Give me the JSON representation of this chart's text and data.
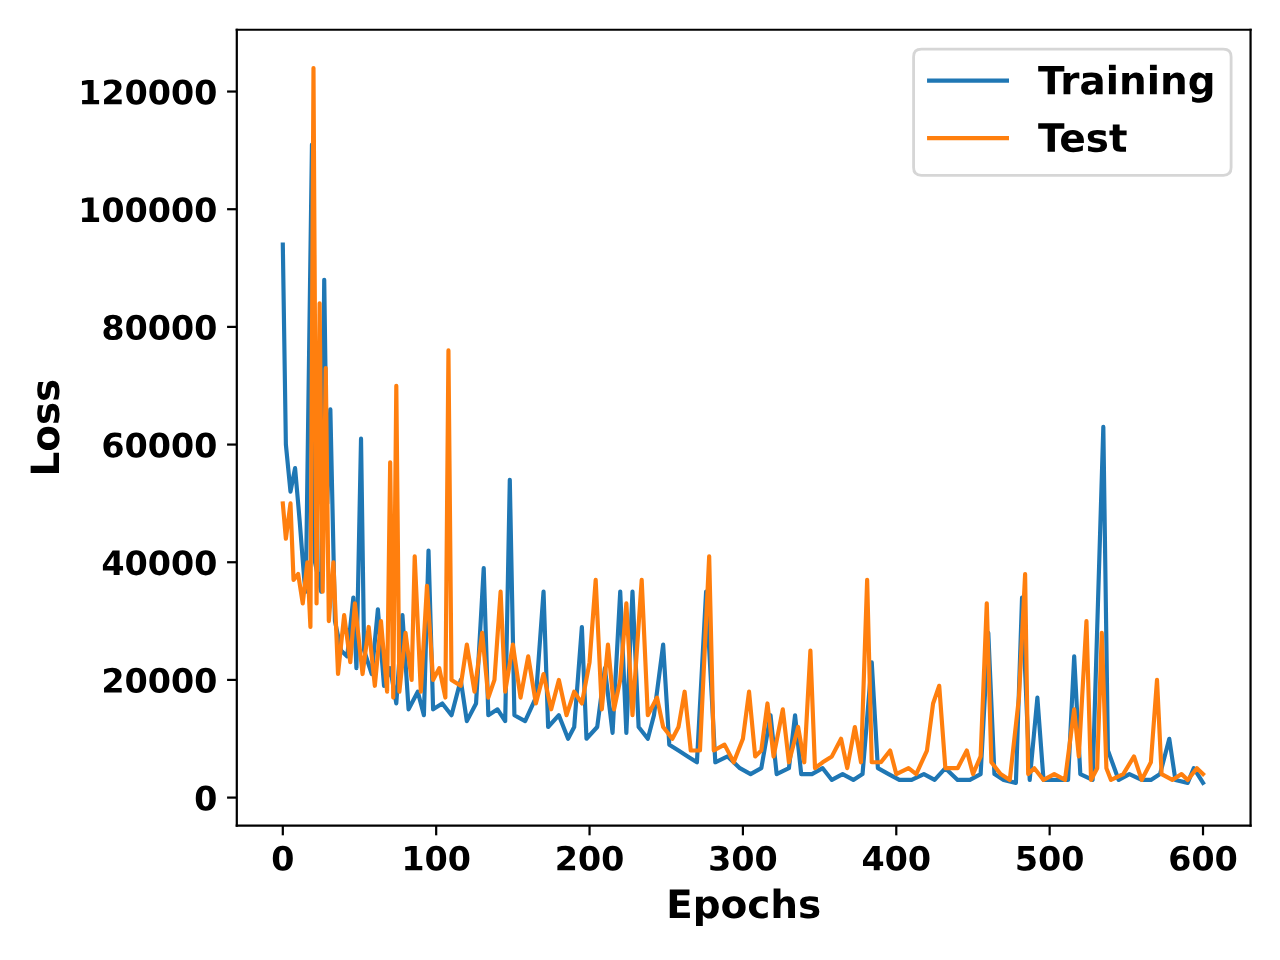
{
  "chart_data": {
    "type": "line",
    "xlabel": "Epochs",
    "ylabel": "Loss",
    "xlim": [
      -30,
      631
    ],
    "ylim": [
      -4760,
      130500
    ],
    "xticks": [
      0,
      100,
      200,
      300,
      400,
      500,
      600
    ],
    "yticks": [
      0,
      20000,
      40000,
      60000,
      80000,
      100000,
      120000
    ],
    "legend": "top right",
    "grid": false,
    "series": [
      {
        "name": "Training",
        "color": "#1f77b4",
        "x": [
          0,
          2,
          5,
          8,
          11,
          14,
          15,
          19,
          21,
          25,
          27,
          29,
          31,
          34,
          38,
          42,
          46,
          48,
          51,
          53,
          58,
          62,
          66,
          70,
          74,
          78,
          82,
          88,
          92,
          95,
          98,
          104,
          110,
          116,
          120,
          126,
          131,
          134,
          140,
          145,
          148,
          151,
          158,
          165,
          170,
          173,
          180,
          186,
          190,
          195,
          198,
          205,
          210,
          215,
          220,
          224,
          228,
          232,
          238,
          242,
          248,
          252,
          258,
          264,
          270,
          276,
          282,
          290,
          298,
          305,
          312,
          318,
          322,
          330,
          334,
          338,
          345,
          352,
          358,
          365,
          372,
          378,
          384,
          388,
          395,
          402,
          410,
          418,
          425,
          432,
          440,
          448,
          455,
          460,
          464,
          470,
          478,
          482,
          487,
          492,
          496,
          505,
          512,
          516,
          520,
          528,
          535,
          538,
          545,
          552,
          560,
          566,
          572,
          578,
          582,
          590,
          594,
          600
        ],
        "values": [
          94000,
          60000,
          52000,
          56000,
          47000,
          37000,
          35000,
          111000,
          40000,
          35000,
          88000,
          50000,
          66000,
          30000,
          25000,
          24000,
          34000,
          22000,
          61000,
          25000,
          21000,
          32000,
          19000,
          22000,
          16000,
          31000,
          15000,
          18000,
          14000,
          42000,
          15000,
          16000,
          14000,
          20000,
          13000,
          16000,
          39000,
          14000,
          15000,
          13000,
          54000,
          14000,
          13000,
          17000,
          35000,
          12000,
          14000,
          10000,
          12000,
          29000,
          10000,
          12000,
          22000,
          11000,
          35000,
          11000,
          35000,
          12000,
          10000,
          14000,
          26000,
          9000,
          8000,
          7000,
          6000,
          35000,
          6000,
          7000,
          5000,
          4000,
          5000,
          14000,
          4000,
          5000,
          14000,
          4000,
          4000,
          5000,
          3000,
          4000,
          3000,
          4000,
          23000,
          5000,
          4000,
          3000,
          3000,
          4000,
          3000,
          5000,
          3000,
          3000,
          4000,
          28000,
          4000,
          3000,
          2500,
          34000,
          3000,
          17000,
          3000,
          3000,
          3000,
          24000,
          4000,
          3000,
          63000,
          8000,
          3000,
          4000,
          3000,
          3000,
          4000,
          10000,
          3000,
          2500,
          5000,
          2500
        ]
      },
      {
        "name": "Test",
        "color": "#ff7f0e",
        "x": [
          0,
          2,
          5,
          7,
          10,
          13,
          16,
          18,
          20,
          22,
          24,
          26,
          28,
          30,
          33,
          36,
          40,
          44,
          47,
          52,
          56,
          60,
          64,
          68,
          70,
          72,
          74,
          76,
          80,
          84,
          86,
          90,
          94,
          98,
          102,
          106,
          108,
          110,
          116,
          120,
          125,
          130,
          134,
          138,
          142,
          145,
          150,
          155,
          160,
          165,
          170,
          175,
          180,
          185,
          190,
          195,
          200,
          204,
          208,
          212,
          216,
          220,
          224,
          228,
          234,
          238,
          244,
          248,
          254,
          258,
          262,
          266,
          272,
          278,
          281,
          288,
          294,
          300,
          304,
          308,
          312,
          316,
          320,
          326,
          330,
          336,
          340,
          344,
          347,
          352,
          358,
          364,
          368,
          373,
          377,
          381,
          384,
          390,
          396,
          400,
          408,
          413,
          420,
          424,
          428,
          432,
          440,
          446,
          450,
          455,
          459,
          462,
          468,
          474,
          480,
          484,
          486,
          490,
          496,
          503,
          510,
          516,
          519,
          524,
          527,
          531,
          534,
          537,
          540,
          548,
          555,
          560,
          566,
          570,
          573,
          580,
          586,
          590,
          596,
          600
        ],
        "values": [
          50000,
          44000,
          50000,
          37000,
          38000,
          33000,
          40000,
          29000,
          124000,
          33000,
          84000,
          35000,
          73000,
          30000,
          40000,
          21000,
          31000,
          23000,
          33000,
          21000,
          29000,
          19000,
          30000,
          18000,
          57000,
          17000,
          70000,
          18000,
          28000,
          20000,
          41000,
          18000,
          36000,
          20000,
          22000,
          17000,
          76000,
          20000,
          19000,
          26000,
          18000,
          28000,
          17000,
          20000,
          35000,
          18000,
          26000,
          17000,
          24000,
          16000,
          21000,
          15000,
          20000,
          14000,
          18000,
          16000,
          23000,
          37000,
          15000,
          26000,
          15000,
          20000,
          33000,
          14000,
          37000,
          14000,
          17000,
          12000,
          10000,
          12000,
          18000,
          8000,
          8000,
          41000,
          8000,
          9000,
          6000,
          10000,
          18000,
          7000,
          8000,
          16000,
          7000,
          15000,
          6000,
          12000,
          6000,
          25000,
          5000,
          6000,
          7000,
          10000,
          5000,
          12000,
          6000,
          37000,
          6000,
          6000,
          8000,
          4000,
          5000,
          4000,
          8000,
          16000,
          19000,
          5000,
          5000,
          8000,
          4000,
          7000,
          33000,
          6000,
          4000,
          3000,
          17000,
          38000,
          4000,
          5000,
          3000,
          4000,
          3000,
          15000,
          7000,
          30000,
          3000,
          5000,
          28000,
          5000,
          3000,
          4000,
          7000,
          3000,
          6000,
          20000,
          4000,
          3000,
          4000,
          3000,
          5000,
          4000
        ]
      }
    ]
  }
}
